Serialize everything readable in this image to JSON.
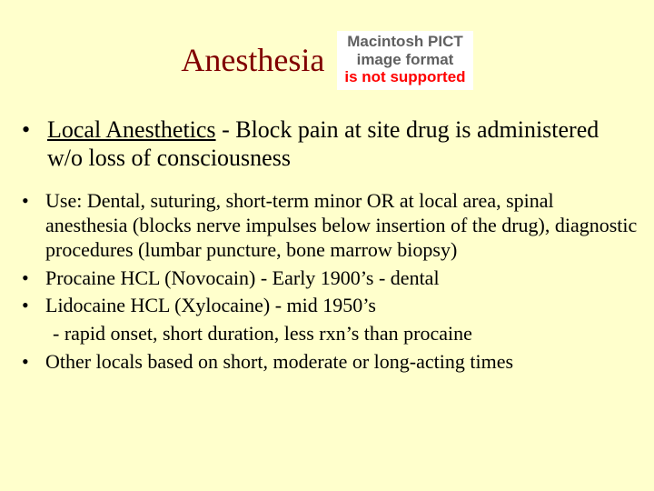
{
  "background_color": "#ffffcc",
  "text_color": "#000000",
  "title": {
    "text": "Anesthesia",
    "color": "#800000",
    "fontsize": 36
  },
  "pict_placeholder": {
    "line1": "Macintosh PICT",
    "line2": "image format",
    "line3": "is not supported",
    "gray_color": "#606060",
    "red_color": "#ff0000",
    "bg": "#ffffff"
  },
  "main_bullet": {
    "heading": "Local Anesthetics",
    "rest": " - Block pain at site drug is administered w/o loss of consciousness"
  },
  "sub_bullets": [
    "Use: Dental, suturing, short-term minor OR at local  area, spinal anesthesia (blocks nerve impulses below insertion of the drug), diagnostic procedures (lumbar puncture, bone marrow biopsy)",
    "Procaine HCL (Novocain) - Early 1900’s - dental",
    "Lidocaine HCL (Xylocaine) - mid 1950’s"
  ],
  "continuation_line": "- rapid onset, short duration, less rxn’s than procaine",
  "last_bullet": "Other locals based on short, moderate or long-acting times",
  "bullet_char": "•"
}
